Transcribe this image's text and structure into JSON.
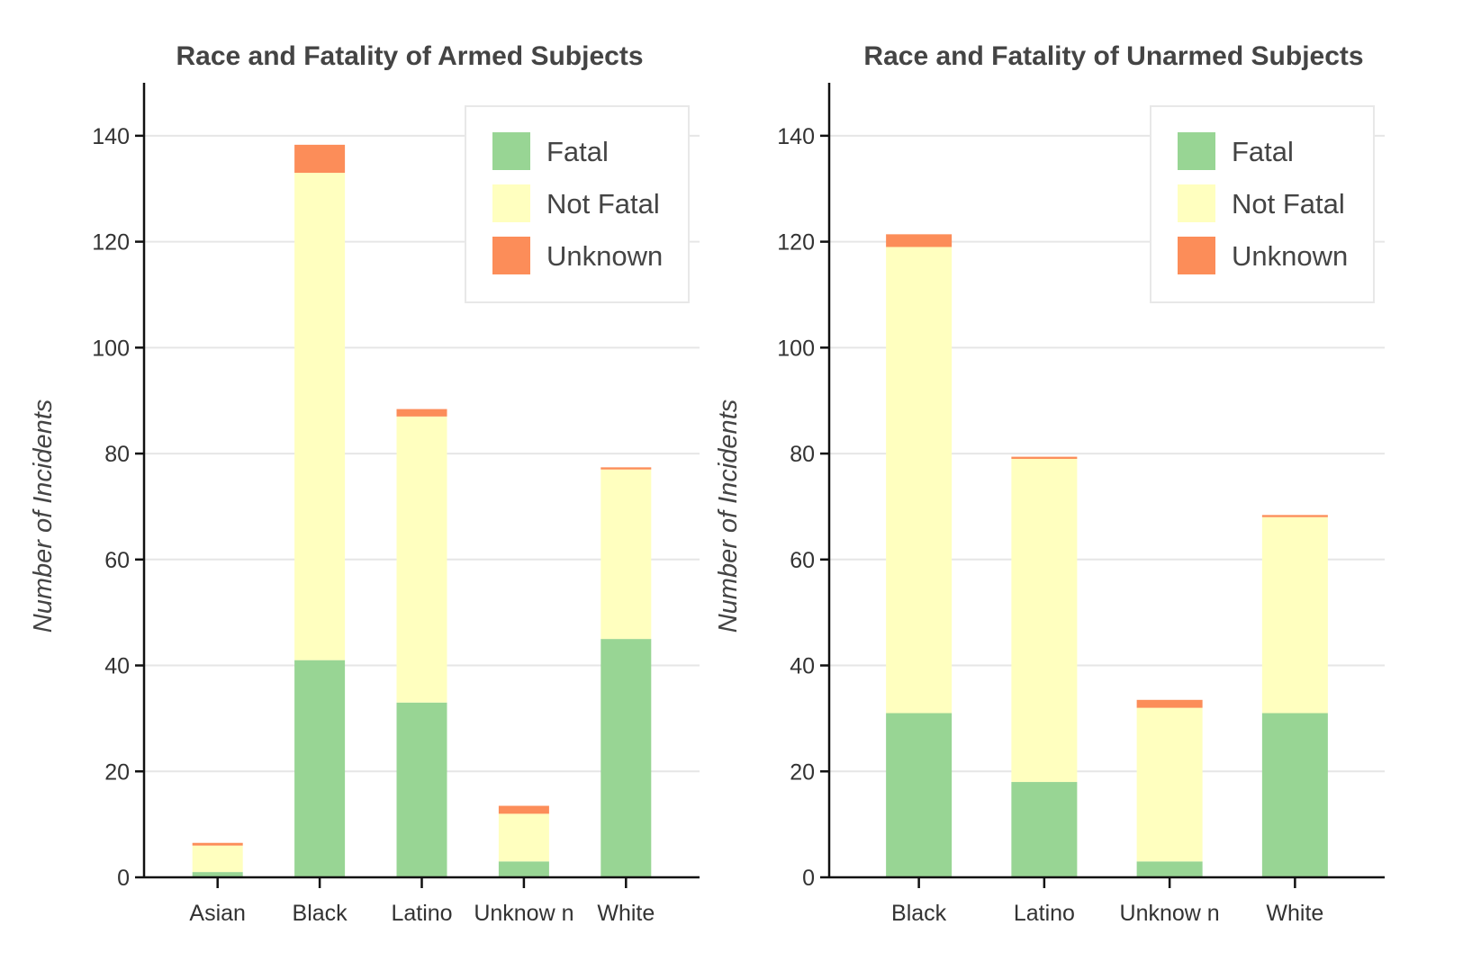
{
  "colors": {
    "Fatal": "#98d594",
    "Not Fatal": "#ffffbf",
    "Unknown": "#fc8d59"
  },
  "chart_data": [
    {
      "type": "bar",
      "stacked": true,
      "title": "Race and Fatality of Armed Subjects",
      "xlabel": "",
      "ylabel": "Number of Incidents",
      "ylim": [
        0,
        150
      ],
      "yticks": [
        0,
        20,
        40,
        60,
        80,
        100,
        120,
        140
      ],
      "grid": true,
      "legend_position": "top-right",
      "categories": [
        "Asian",
        "Black",
        "Latino",
        "Unknow n",
        "White"
      ],
      "series": [
        {
          "name": "Fatal",
          "values": [
            1,
            41,
            33,
            3,
            45
          ]
        },
        {
          "name": "Not Fatal",
          "values": [
            5,
            92,
            54,
            9,
            32
          ]
        },
        {
          "name": "Unknown",
          "values": [
            0.5,
            5.3,
            1.4,
            1.5,
            0.4
          ]
        }
      ]
    },
    {
      "type": "bar",
      "stacked": true,
      "title": "Race and Fatality of Unarmed Subjects",
      "xlabel": "",
      "ylabel": "Number of Incidents",
      "ylim": [
        0,
        150
      ],
      "yticks": [
        0,
        20,
        40,
        60,
        80,
        100,
        120,
        140
      ],
      "grid": true,
      "legend_position": "top-right",
      "categories": [
        "Black",
        "Latino",
        "Unknow n",
        "White"
      ],
      "series": [
        {
          "name": "Fatal",
          "values": [
            31,
            18,
            3,
            31
          ]
        },
        {
          "name": "Not Fatal",
          "values": [
            88,
            61,
            29,
            37
          ]
        },
        {
          "name": "Unknown",
          "values": [
            2.4,
            0.4,
            1.5,
            0.4
          ]
        }
      ]
    }
  ]
}
